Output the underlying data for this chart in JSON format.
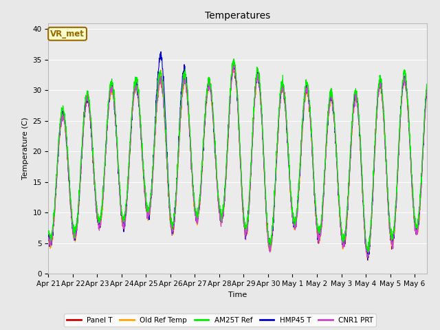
{
  "title": "Temperatures",
  "xlabel": "Time",
  "ylabel": "Temperature (C)",
  "ylim": [
    0,
    41
  ],
  "yticks": [
    0,
    5,
    10,
    15,
    20,
    25,
    30,
    35,
    40
  ],
  "x_labels": [
    "Apr 21",
    "Apr 22",
    "Apr 23",
    "Apr 24",
    "Apr 25",
    "Apr 26",
    "Apr 27",
    "Apr 28",
    "Apr 29",
    "Apr 30",
    "May 1",
    "May 2",
    "May 3",
    "May 4",
    "May 5",
    "May 6"
  ],
  "series_colors": [
    "#cc0000",
    "#ffa500",
    "#00ee00",
    "#0000cc",
    "#cc44cc"
  ],
  "series_labels": [
    "Panel T",
    "Old Ref Temp",
    "AM25T Ref",
    "HMP45 T",
    "CNR1 PRT"
  ],
  "background_color": "#e8e8e8",
  "plot_bg_color": "#ebebeb",
  "grid_color": "#ffffff",
  "annotation_text": "VR_met",
  "annotation_bg": "#ffffcc",
  "annotation_border": "#996600",
  "n_days": 15.5,
  "points_per_day": 144,
  "day_mins": [
    5,
    6,
    8,
    8,
    10,
    7,
    9,
    9,
    7,
    4,
    8,
    6,
    5,
    3,
    5,
    7
  ],
  "day_maxs": [
    25,
    27,
    30,
    31,
    31,
    33,
    31,
    31,
    36,
    30,
    31,
    30,
    28,
    30,
    32,
    32
  ]
}
